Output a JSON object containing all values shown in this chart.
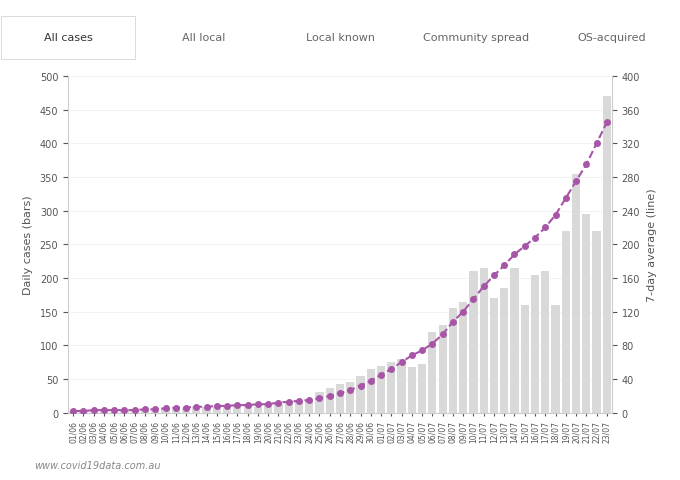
{
  "title_tabs": [
    "All cases",
    "All local",
    "Local known",
    "Community spread",
    "OS-acquired"
  ],
  "active_tab": 0,
  "dates": [
    "01/06",
    "02/06",
    "03/06",
    "04/06",
    "05/06",
    "06/06",
    "07/06",
    "08/06",
    "09/06",
    "10/06",
    "11/06",
    "12/06",
    "13/06",
    "14/06",
    "15/06",
    "16/06",
    "17/06",
    "18/06",
    "19/06",
    "20/06",
    "21/06",
    "22/06",
    "23/06",
    "24/06",
    "25/06",
    "26/06",
    "27/06",
    "28/06",
    "29/06",
    "30/06",
    "01/07",
    "02/07",
    "03/07",
    "04/07",
    "05/07",
    "06/07",
    "07/07",
    "08/07",
    "09/07",
    "10/07",
    "11/07",
    "12/07",
    "13/07",
    "14/07",
    "15/07",
    "16/07",
    "17/07",
    "18/07",
    "19/07",
    "20/07",
    "21/07",
    "22/07",
    "23/07"
  ],
  "bar_values": [
    2,
    3,
    5,
    2,
    1,
    2,
    3,
    4,
    5,
    8,
    6,
    7,
    10,
    9,
    8,
    10,
    12,
    11,
    8,
    15,
    13,
    18,
    17,
    20,
    30,
    36,
    42,
    45,
    55,
    65,
    70,
    75,
    80,
    68,
    72,
    120,
    130,
    155,
    165,
    210,
    215,
    170,
    185,
    215,
    160,
    205,
    210,
    160,
    270,
    355,
    295,
    270,
    470
  ],
  "line_values": [
    2,
    2,
    3,
    3,
    3,
    3,
    3,
    4,
    4,
    5,
    6,
    6,
    7,
    7,
    8,
    8,
    9,
    9,
    10,
    10,
    12,
    13,
    14,
    15,
    17,
    20,
    23,
    27,
    32,
    38,
    45,
    52,
    60,
    68,
    74,
    82,
    93,
    108,
    120,
    135,
    150,
    163,
    175,
    188,
    198,
    208,
    220,
    235,
    255,
    275,
    295,
    320,
    345
  ],
  "bar_color": "#d9d9d9",
  "line_color": "#a855a8",
  "dot_color": "#a855a8",
  "ylabel_left": "Daily cases (bars)",
  "ylabel_right": "7-day average (line)",
  "ylim_left": [
    0,
    500
  ],
  "ylim_right": [
    0,
    400
  ],
  "yticks_left": [
    0,
    50,
    100,
    150,
    200,
    250,
    300,
    350,
    400,
    450,
    500
  ],
  "yticks_right": [
    0,
    40,
    80,
    120,
    160,
    200,
    240,
    280,
    320,
    360,
    400
  ],
  "background_color": "#ffffff",
  "tab_bar_color": "#e8e8e8",
  "active_tab_color": "#ffffff",
  "watermark": "www.covid19data.com.au",
  "fig_width": 6.8,
  "fig_height": 4.81
}
